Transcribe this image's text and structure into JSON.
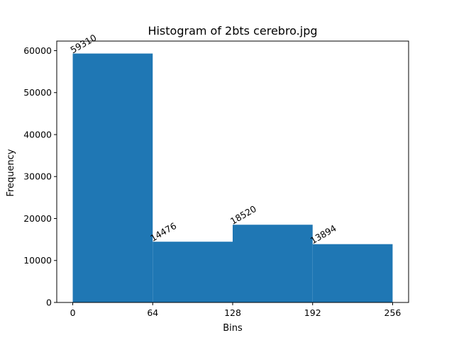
{
  "chart_data": {
    "type": "bar",
    "title": "Histogram of 2bts cerebro.jpg",
    "xlabel": "Bins",
    "ylabel": "Frequency",
    "bin_edges": [
      0,
      64,
      128,
      192,
      256
    ],
    "values": [
      59310,
      14476,
      18520,
      13894
    ],
    "data_labels": [
      "59310",
      "14476",
      "18520",
      "13894"
    ],
    "xticks": [
      0,
      64,
      128,
      192,
      256
    ],
    "xtick_labels": [
      "0",
      "64",
      "128",
      "192",
      "256"
    ],
    "yticks": [
      0,
      10000,
      20000,
      30000,
      40000,
      50000,
      60000
    ],
    "ytick_labels": [
      "0",
      "10000",
      "20000",
      "30000",
      "40000",
      "50000",
      "60000"
    ],
    "xlim": [
      -12.8,
      268.8
    ],
    "ylim": [
      0,
      62275.5
    ],
    "grid": false,
    "bar_color": "#1f77b4",
    "data_label_rotation_deg": 30
  }
}
